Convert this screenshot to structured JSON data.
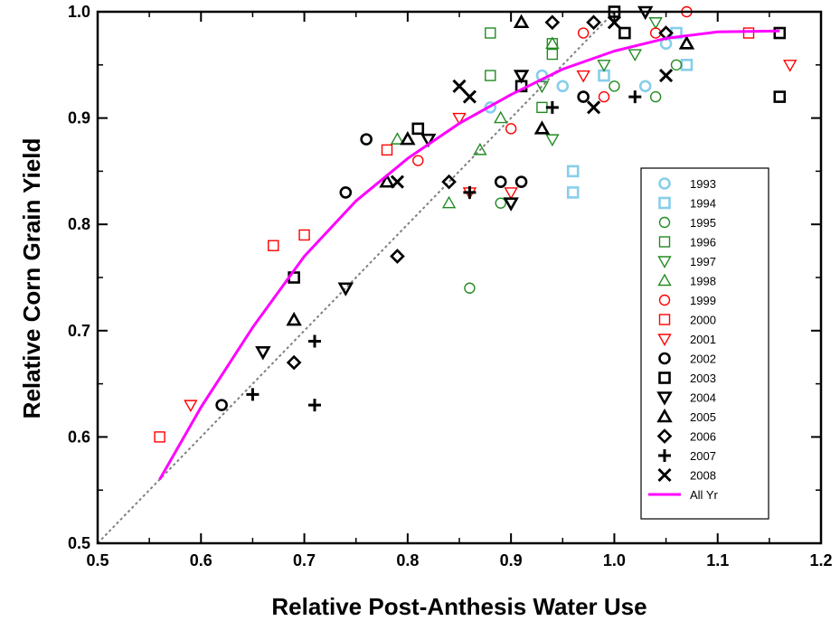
{
  "chart_data": {
    "type": "scatter",
    "xlabel": "Relative Post-Anthesis Water Use",
    "ylabel": "Relative Corn Grain Yield",
    "xlim": [
      0.5,
      1.2
    ],
    "ylim": [
      0.5,
      1.0
    ],
    "x_ticks": [
      "0.5",
      "0.6",
      "0.7",
      "0.8",
      "0.9",
      "1.0",
      "1.1",
      "1.2"
    ],
    "y_ticks": [
      "0.5",
      "0.6",
      "0.7",
      "0.8",
      "0.9",
      "1.0"
    ],
    "grid": false,
    "legend_position": "bottom-right",
    "series": [
      {
        "name": "1993",
        "marker": "circle",
        "color": "#87ceeb",
        "bold": true,
        "points": [
          [
            0.88,
            0.91
          ],
          [
            0.93,
            0.94
          ],
          [
            0.95,
            0.93
          ],
          [
            1.03,
            0.93
          ],
          [
            1.05,
            0.97
          ]
        ]
      },
      {
        "name": "1994",
        "marker": "square",
        "color": "#87ceeb",
        "bold": true,
        "points": [
          [
            0.96,
            0.85
          ],
          [
            0.96,
            0.83
          ],
          [
            0.99,
            0.94
          ],
          [
            1.06,
            0.98
          ],
          [
            1.07,
            0.95
          ]
        ]
      },
      {
        "name": "1995",
        "marker": "circle",
        "color": "#228b22",
        "bold": false,
        "points": [
          [
            0.86,
            0.74
          ],
          [
            0.89,
            0.82
          ],
          [
            1.0,
            0.93
          ],
          [
            1.04,
            0.92
          ],
          [
            1.06,
            0.95
          ]
        ]
      },
      {
        "name": "1996",
        "marker": "square",
        "color": "#228b22",
        "bold": false,
        "points": [
          [
            0.88,
            0.98
          ],
          [
            0.88,
            0.94
          ],
          [
            0.93,
            0.91
          ],
          [
            0.94,
            0.97
          ],
          [
            0.94,
            0.96
          ]
        ]
      },
      {
        "name": "1997",
        "marker": "triangle-down",
        "color": "#228b22",
        "bold": false,
        "points": [
          [
            0.93,
            0.93
          ],
          [
            0.94,
            0.88
          ],
          [
            0.99,
            0.95
          ],
          [
            1.02,
            0.96
          ],
          [
            1.04,
            0.99
          ]
        ]
      },
      {
        "name": "1998",
        "marker": "triangle-up",
        "color": "#228b22",
        "bold": false,
        "points": [
          [
            0.79,
            0.88
          ],
          [
            0.84,
            0.82
          ],
          [
            0.87,
            0.87
          ],
          [
            0.89,
            0.9
          ],
          [
            0.94,
            0.97
          ]
        ]
      },
      {
        "name": "1999",
        "marker": "circle",
        "color": "#ff0000",
        "bold": false,
        "points": [
          [
            0.81,
            0.86
          ],
          [
            0.9,
            0.89
          ],
          [
            0.97,
            0.98
          ],
          [
            0.99,
            0.92
          ],
          [
            1.04,
            0.98
          ],
          [
            1.07,
            1.0
          ]
        ]
      },
      {
        "name": "2000",
        "marker": "square",
        "color": "#ff0000",
        "bold": false,
        "points": [
          [
            0.56,
            0.6
          ],
          [
            0.67,
            0.78
          ],
          [
            0.7,
            0.79
          ],
          [
            0.78,
            0.87
          ],
          [
            1.13,
            0.98
          ]
        ]
      },
      {
        "name": "2001",
        "marker": "triangle-down",
        "color": "#ff0000",
        "bold": false,
        "points": [
          [
            0.59,
            0.63
          ],
          [
            0.85,
            0.9
          ],
          [
            0.86,
            0.83
          ],
          [
            0.9,
            0.83
          ],
          [
            0.97,
            0.94
          ],
          [
            1.17,
            0.95
          ]
        ]
      },
      {
        "name": "2002",
        "marker": "circle",
        "color": "#000000",
        "bold": true,
        "points": [
          [
            0.62,
            0.63
          ],
          [
            0.74,
            0.83
          ],
          [
            0.76,
            0.88
          ],
          [
            0.89,
            0.84
          ],
          [
            0.91,
            0.84
          ],
          [
            0.97,
            0.92
          ]
        ]
      },
      {
        "name": "2003",
        "marker": "square",
        "color": "#000000",
        "bold": true,
        "points": [
          [
            0.69,
            0.75
          ],
          [
            0.81,
            0.89
          ],
          [
            0.91,
            0.93
          ],
          [
            1.0,
            1.0
          ],
          [
            1.01,
            0.98
          ],
          [
            1.16,
            0.98
          ],
          [
            1.16,
            0.92
          ]
        ]
      },
      {
        "name": "2004",
        "marker": "triangle-down",
        "color": "#000000",
        "bold": true,
        "points": [
          [
            0.66,
            0.68
          ],
          [
            0.74,
            0.74
          ],
          [
            0.82,
            0.88
          ],
          [
            0.9,
            0.82
          ],
          [
            0.91,
            0.94
          ],
          [
            1.03,
            1.0
          ]
        ]
      },
      {
        "name": "2005",
        "marker": "triangle-up",
        "color": "#000000",
        "bold": true,
        "points": [
          [
            0.69,
            0.71
          ],
          [
            0.78,
            0.84
          ],
          [
            0.8,
            0.88
          ],
          [
            0.91,
            0.99
          ],
          [
            0.93,
            0.89
          ],
          [
            1.07,
            0.97
          ]
        ]
      },
      {
        "name": "2006",
        "marker": "diamond",
        "color": "#000000",
        "bold": true,
        "points": [
          [
            0.69,
            0.67
          ],
          [
            0.79,
            0.77
          ],
          [
            0.84,
            0.84
          ],
          [
            0.94,
            0.99
          ],
          [
            0.98,
            0.99
          ],
          [
            1.05,
            0.98
          ]
        ]
      },
      {
        "name": "2007",
        "marker": "plus",
        "color": "#000000",
        "bold": true,
        "points": [
          [
            0.65,
            0.64
          ],
          [
            0.71,
            0.69
          ],
          [
            0.71,
            0.63
          ],
          [
            0.86,
            0.83
          ],
          [
            0.94,
            0.91
          ],
          [
            1.02,
            0.92
          ]
        ]
      },
      {
        "name": "2008",
        "marker": "x",
        "color": "#000000",
        "bold": true,
        "points": [
          [
            0.79,
            0.84
          ],
          [
            0.85,
            0.93
          ],
          [
            0.86,
            0.92
          ],
          [
            0.98,
            0.91
          ],
          [
            1.0,
            0.99
          ],
          [
            1.05,
            0.94
          ]
        ]
      }
    ],
    "reference_line": {
      "style": "dotted",
      "color": "#808080",
      "points": [
        [
          0.5,
          0.5
        ],
        [
          1.0,
          1.0
        ]
      ]
    },
    "fit_line": {
      "name": "All Yr",
      "color": "#ff00ff",
      "points": [
        [
          0.56,
          0.56
        ],
        [
          0.6,
          0.628
        ],
        [
          0.65,
          0.703
        ],
        [
          0.7,
          0.77
        ],
        [
          0.75,
          0.822
        ],
        [
          0.8,
          0.862
        ],
        [
          0.85,
          0.895
        ],
        [
          0.9,
          0.922
        ],
        [
          0.95,
          0.946
        ],
        [
          1.0,
          0.963
        ],
        [
          1.05,
          0.975
        ],
        [
          1.1,
          0.981
        ],
        [
          1.16,
          0.982
        ]
      ]
    }
  }
}
